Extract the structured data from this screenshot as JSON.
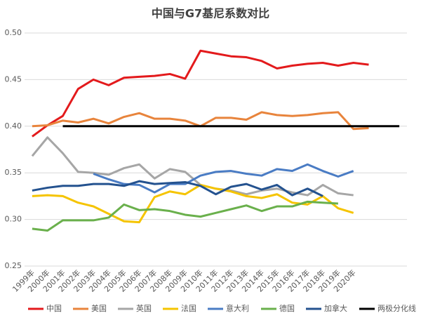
{
  "chart_data": {
    "type": "line",
    "title": "中国与G7基尼系数对比",
    "categories": [
      "1999年",
      "2000年",
      "2001年",
      "2002年",
      "2003年",
      "2004年",
      "2005年",
      "2006年",
      "2007年",
      "2008年",
      "2009年",
      "2010年",
      "2011年",
      "2012年",
      "2013年",
      "2014年",
      "2015年",
      "2016年",
      "2017年",
      "2018年",
      "2019年",
      "2020年",
      null,
      null,
      null
    ],
    "ylim": [
      0.25,
      0.5
    ],
    "yticks": [
      0.25,
      {
        "value": 0.3,
        "label": "0.30"
      },
      0.35,
      {
        "value": 0.4,
        "label": "0.40"
      },
      0.45,
      {
        "value": 0.5,
        "label": "0.50"
      }
    ],
    "grid": true,
    "legend": "bottom",
    "series": [
      {
        "name": "中国",
        "color": "#e31a1c",
        "values": [
          0.389,
          0.401,
          0.411,
          0.44,
          0.45,
          0.444,
          0.452,
          0.453,
          0.454,
          0.456,
          0.451,
          0.481,
          0.478,
          0.475,
          0.474,
          0.47,
          0.462,
          0.465,
          0.467,
          0.468,
          0.465,
          0.468,
          0.466,
          null,
          null
        ]
      },
      {
        "name": "美国",
        "color": "#e8843c",
        "values": [
          0.4,
          0.401,
          0.406,
          0.404,
          0.408,
          0.403,
          0.41,
          0.414,
          0.408,
          0.408,
          0.406,
          0.4,
          0.409,
          0.409,
          0.407,
          0.415,
          0.412,
          0.411,
          0.412,
          0.414,
          0.415,
          0.397,
          0.398,
          null,
          null
        ]
      },
      {
        "name": "英国",
        "color": "#a6a6a6",
        "values": [
          0.368,
          0.388,
          0.371,
          0.351,
          0.35,
          0.348,
          0.355,
          0.359,
          0.344,
          0.354,
          0.351,
          0.337,
          0.333,
          0.331,
          0.327,
          0.331,
          0.333,
          0.329,
          0.326,
          0.337,
          0.328,
          0.326,
          null,
          null,
          null
        ]
      },
      {
        "name": "法国",
        "color": "#f5c400",
        "values": [
          0.325,
          0.326,
          0.325,
          0.318,
          0.314,
          0.306,
          0.298,
          0.297,
          0.324,
          0.33,
          0.327,
          0.337,
          0.333,
          0.33,
          0.325,
          0.323,
          0.327,
          0.318,
          0.316,
          0.325,
          0.312,
          0.307,
          null,
          null,
          null
        ]
      },
      {
        "name": "意大利",
        "color": "#4a7cc4",
        "values": [
          null,
          null,
          null,
          null,
          0.349,
          0.343,
          0.338,
          0.337,
          0.329,
          0.338,
          0.338,
          0.347,
          0.351,
          0.352,
          0.349,
          0.347,
          0.354,
          0.352,
          0.359,
          0.352,
          0.346,
          0.352,
          null,
          null,
          null
        ]
      },
      {
        "name": "德国",
        "color": "#6ab04c",
        "values": [
          0.29,
          0.288,
          0.299,
          0.299,
          0.299,
          0.302,
          0.316,
          0.31,
          0.311,
          0.309,
          0.305,
          0.303,
          0.307,
          0.311,
          0.315,
          0.309,
          0.314,
          0.314,
          0.319,
          0.318,
          0.317,
          null,
          null,
          null,
          null
        ]
      },
      {
        "name": "加拿大",
        "color": "#24528f",
        "values": [
          0.331,
          0.334,
          0.336,
          0.336,
          0.338,
          0.338,
          0.336,
          0.341,
          0.338,
          0.339,
          0.34,
          0.336,
          0.327,
          0.335,
          0.338,
          0.332,
          0.337,
          0.326,
          0.333,
          0.325,
          null,
          null,
          null,
          null,
          null
        ]
      },
      {
        "name": "两极分化线",
        "color": "#000000",
        "values": [
          null,
          null,
          0.4,
          0.4,
          0.4,
          0.4,
          0.4,
          0.4,
          0.4,
          0.4,
          0.4,
          0.4,
          0.4,
          0.4,
          0.4,
          0.4,
          0.4,
          0.4,
          0.4,
          0.4,
          0.4,
          0.4,
          0.4,
          0.4,
          0.4
        ]
      }
    ]
  }
}
